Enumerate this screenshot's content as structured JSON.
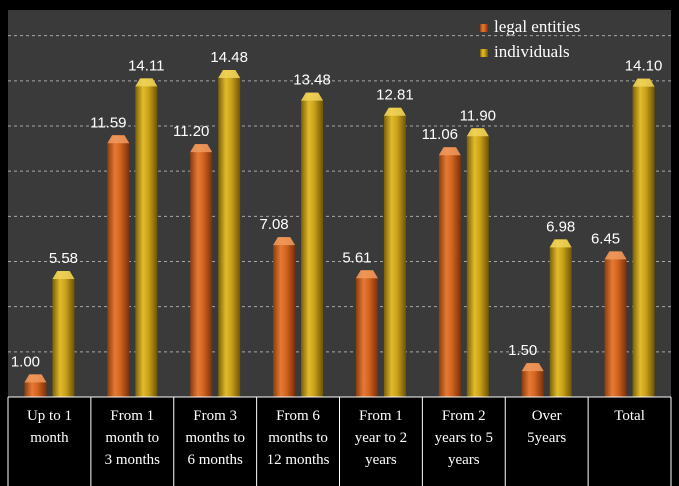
{
  "chart_data": {
    "type": "bar",
    "categories": [
      [
        "Up to 1",
        "month"
      ],
      [
        "From 1",
        "month to",
        "3 months"
      ],
      [
        "From 3",
        "months to",
        "6 months"
      ],
      [
        "From 6",
        "months to",
        "12 months"
      ],
      [
        "From 1",
        "year to 2",
        "years"
      ],
      [
        "From 2",
        "years to 5",
        "years"
      ],
      [
        "Over",
        "5years"
      ],
      [
        "Total"
      ]
    ],
    "series": [
      {
        "name": "legal entities",
        "values": [
          1.0,
          11.59,
          11.2,
          7.08,
          5.61,
          11.06,
          1.5,
          6.45
        ],
        "labels": [
          "1.00",
          "11.59",
          "11.20",
          "7.08",
          "5.61",
          "11.06",
          "1.50",
          "6.45"
        ],
        "color": "#d2641f"
      },
      {
        "name": "individuals",
        "values": [
          5.58,
          14.11,
          14.48,
          13.48,
          12.81,
          11.9,
          6.98,
          14.1
        ],
        "labels": [
          "5.58",
          "14.11",
          "14.48",
          "13.48",
          "12.81",
          "11.90",
          "6.98",
          "14.10"
        ],
        "color": "#c9a21a"
      }
    ],
    "ylim": [
      0,
      16
    ],
    "grid": true,
    "legend_position": "top-right",
    "background_color": "#3a3a3a",
    "page_color": "#000000",
    "grid_color": "#a8a8a8",
    "text_color": "#ffffff"
  }
}
